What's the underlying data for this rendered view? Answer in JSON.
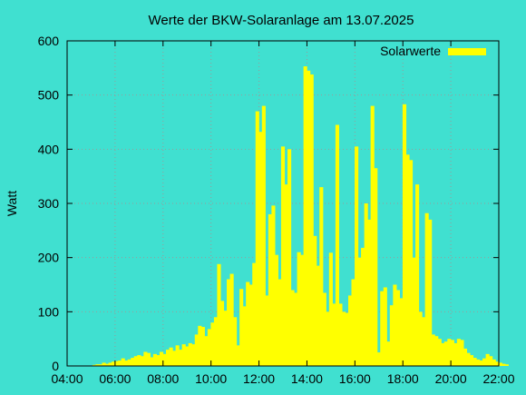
{
  "chart_data": {
    "type": "bar",
    "title": "Werte der BKW-Solaranlage am 13.07.2025",
    "xlabel": "",
    "ylabel": "Watt",
    "xlim": [
      "04:00",
      "22:00"
    ],
    "ylim": [
      0,
      600
    ],
    "x_ticks": [
      "04:00",
      "06:00",
      "08:00",
      "10:00",
      "12:00",
      "14:00",
      "16:00",
      "18:00",
      "20:00",
      "22:00"
    ],
    "y_ticks": [
      "0",
      "100",
      "200",
      "300",
      "400",
      "500",
      "600"
    ],
    "grid": true,
    "legend_position": "top-right",
    "series": [
      {
        "name": "Solarwerte",
        "color": "#ffff00",
        "points": [
          [
            "05:08",
            2
          ],
          [
            "05:16",
            3
          ],
          [
            "05:24",
            3
          ],
          [
            "05:32",
            6
          ],
          [
            "05:40",
            4
          ],
          [
            "05:48",
            6
          ],
          [
            "05:56",
            8
          ],
          [
            "06:04",
            9
          ],
          [
            "06:12",
            10
          ],
          [
            "06:20",
            14
          ],
          [
            "06:28",
            10
          ],
          [
            "06:36",
            12
          ],
          [
            "06:44",
            15
          ],
          [
            "06:52",
            18
          ],
          [
            "07:00",
            20
          ],
          [
            "07:08",
            18
          ],
          [
            "07:16",
            26
          ],
          [
            "07:24",
            24
          ],
          [
            "07:32",
            16
          ],
          [
            "07:40",
            22
          ],
          [
            "07:48",
            20
          ],
          [
            "07:56",
            26
          ],
          [
            "08:04",
            22
          ],
          [
            "08:12",
            30
          ],
          [
            "08:20",
            34
          ],
          [
            "08:28",
            28
          ],
          [
            "08:36",
            38
          ],
          [
            "08:44",
            30
          ],
          [
            "08:52",
            40
          ],
          [
            "09:00",
            36
          ],
          [
            "09:08",
            42
          ],
          [
            "09:16",
            40
          ],
          [
            "09:24",
            58
          ],
          [
            "09:32",
            74
          ],
          [
            "09:40",
            72
          ],
          [
            "09:48",
            55
          ],
          [
            "09:56",
            68
          ],
          [
            "10:04",
            80
          ],
          [
            "10:12",
            90
          ],
          [
            "10:20",
            188
          ],
          [
            "10:28",
            120
          ],
          [
            "10:36",
            102
          ],
          [
            "10:44",
            160
          ],
          [
            "10:52",
            170
          ],
          [
            "11:00",
            90
          ],
          [
            "11:08",
            38
          ],
          [
            "11:16",
            142
          ],
          [
            "11:24",
            110
          ],
          [
            "11:32",
            155
          ],
          [
            "11:40",
            150
          ],
          [
            "11:48",
            190
          ],
          [
            "11:56",
            470
          ],
          [
            "12:04",
            432
          ],
          [
            "12:12",
            480
          ],
          [
            "12:20",
            130
          ],
          [
            "12:28",
            280
          ],
          [
            "12:36",
            296
          ],
          [
            "12:44",
            205
          ],
          [
            "12:52",
            160
          ],
          [
            "13:00",
            405
          ],
          [
            "13:08",
            335
          ],
          [
            "13:16",
            400
          ],
          [
            "13:24",
            140
          ],
          [
            "13:32",
            135
          ],
          [
            "13:40",
            210
          ],
          [
            "13:48",
            205
          ],
          [
            "13:56",
            553
          ],
          [
            "14:04",
            545
          ],
          [
            "14:12",
            538
          ],
          [
            "14:20",
            240
          ],
          [
            "14:28",
            185
          ],
          [
            "14:36",
            330
          ],
          [
            "14:44",
            135
          ],
          [
            "14:52",
            100
          ],
          [
            "15:00",
            209
          ],
          [
            "15:08",
            115
          ],
          [
            "15:16",
            445
          ],
          [
            "15:24",
            115
          ],
          [
            "15:32",
            100
          ],
          [
            "15:40",
            98
          ],
          [
            "15:48",
            130
          ],
          [
            "15:56",
            160
          ],
          [
            "16:04",
            405
          ],
          [
            "16:12",
            200
          ],
          [
            "16:20",
            218
          ],
          [
            "16:28",
            300
          ],
          [
            "16:36",
            270
          ],
          [
            "16:44",
            480
          ],
          [
            "16:52",
            365
          ],
          [
            "17:00",
            25
          ],
          [
            "17:08",
            138
          ],
          [
            "17:16",
            145
          ],
          [
            "17:24",
            45
          ],
          [
            "17:32",
            112
          ],
          [
            "17:40",
            150
          ],
          [
            "17:48",
            140
          ],
          [
            "17:56",
            125
          ],
          [
            "18:04",
            483
          ],
          [
            "18:12",
            390
          ],
          [
            "18:20",
            380
          ],
          [
            "18:28",
            200
          ],
          [
            "18:36",
            335
          ],
          [
            "18:44",
            100
          ],
          [
            "18:52",
            90
          ],
          [
            "19:00",
            282
          ],
          [
            "19:08",
            270
          ],
          [
            "19:16",
            58
          ],
          [
            "19:24",
            55
          ],
          [
            "19:32",
            50
          ],
          [
            "19:40",
            42
          ],
          [
            "19:48",
            45
          ],
          [
            "19:56",
            50
          ],
          [
            "20:04",
            48
          ],
          [
            "20:12",
            42
          ],
          [
            "20:20",
            50
          ],
          [
            "20:28",
            48
          ],
          [
            "20:36",
            32
          ],
          [
            "20:44",
            24
          ],
          [
            "20:52",
            20
          ],
          [
            "21:00",
            15
          ],
          [
            "21:08",
            12
          ],
          [
            "21:16",
            10
          ],
          [
            "21:24",
            14
          ],
          [
            "21:32",
            22
          ],
          [
            "21:40",
            18
          ],
          [
            "21:48",
            12
          ],
          [
            "21:56",
            8
          ],
          [
            "22:04",
            6
          ],
          [
            "22:12",
            4
          ],
          [
            "22:20",
            3
          ]
        ]
      }
    ]
  }
}
